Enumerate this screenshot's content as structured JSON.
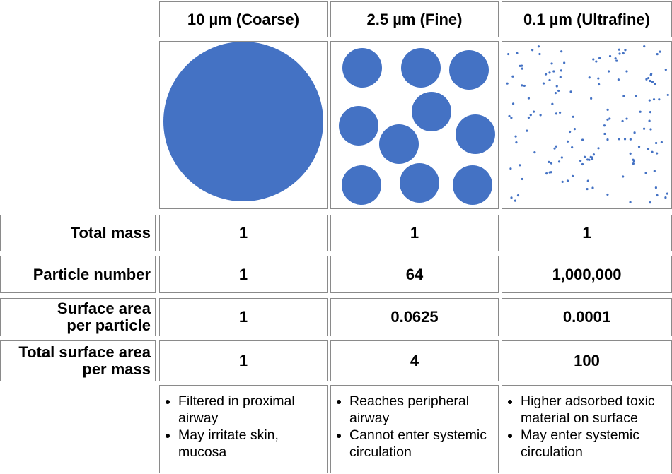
{
  "columns": [
    "10 µm (Coarse)",
    "2.5 µm (Fine)",
    "0.1 µm (Ultrafine)"
  ],
  "rows": [
    {
      "label": [
        "Total mass"
      ],
      "values": [
        "1",
        "1",
        "1"
      ]
    },
    {
      "label": [
        "Particle number"
      ],
      "values": [
        "1",
        "64",
        "1,000,000"
      ]
    },
    {
      "label": [
        "Surface area",
        "per particle"
      ],
      "values": [
        "1",
        "0.0625",
        "0.0001"
      ]
    },
    {
      "label": [
        "Total surface area",
        "per mass"
      ],
      "values": [
        "1",
        "4",
        "100"
      ]
    }
  ],
  "notes": [
    [
      "Filtered in proximal airway",
      "May irritate skin, mucosa"
    ],
    [
      "Reaches peripheral airway",
      "Cannot enter systemic circulation"
    ],
    [
      "Higher adsorbed toxic material on surface",
      "May enter systemic circulation"
    ]
  ]
}
